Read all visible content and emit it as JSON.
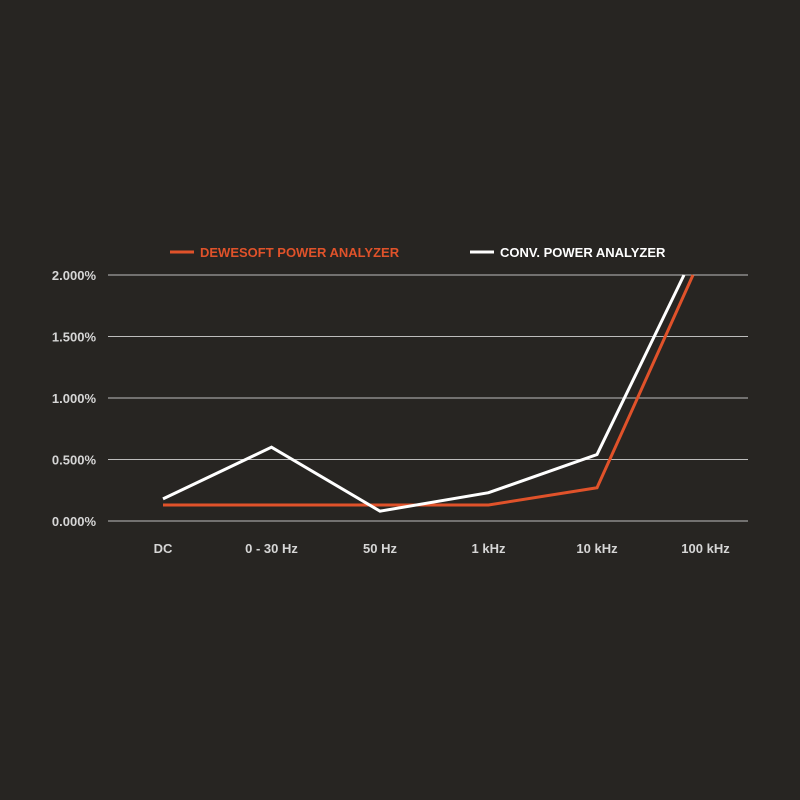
{
  "chart_data": {
    "type": "line",
    "categories": [
      "DC",
      "0 - 30 Hz",
      "50 Hz",
      "1 kHz",
      "10 kHz",
      "100 kHz"
    ],
    "series": [
      {
        "name": "DEWESOFT POWER ANALYZER",
        "color": "#e0522a",
        "values": [
          0.13,
          0.13,
          0.13,
          0.13,
          0.27,
          2.0
        ]
      },
      {
        "name": "CONV. POWER ANALYZER",
        "color": "#ffffff",
        "values": [
          0.18,
          0.6,
          0.08,
          0.23,
          0.54,
          2.0
        ]
      }
    ],
    "yticks": [
      "0.000%",
      "0.500%",
      "1.000%",
      "1.500%",
      "2.000%"
    ],
    "ytick_values": [
      0,
      0.5,
      1.0,
      1.5,
      2.0
    ],
    "ylim": [
      0,
      2.0
    ],
    "grid": true,
    "legend": "top",
    "colors": {
      "background": "#272522",
      "grid": "#bdbdbd",
      "text": "#d6d6d6"
    }
  }
}
